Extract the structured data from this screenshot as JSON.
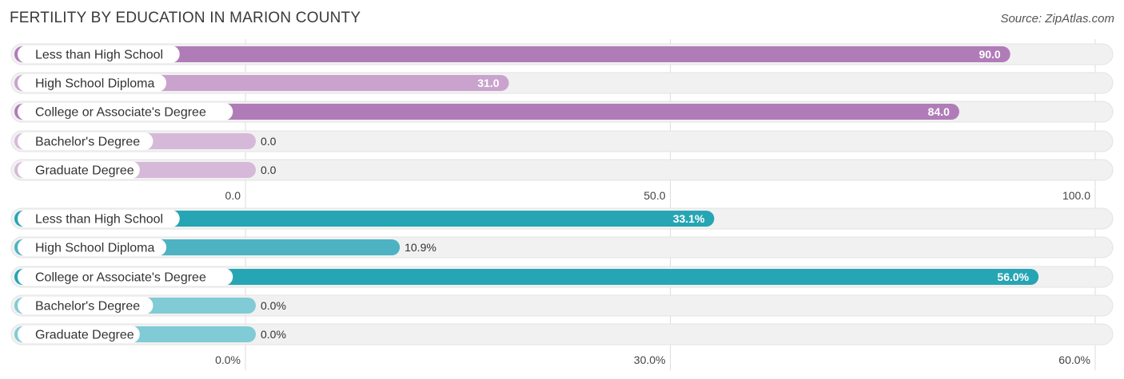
{
  "title": "FERTILITY BY EDUCATION IN MARION COUNTY",
  "source": "Source: ZipAtlas.com",
  "chart_data": [
    {
      "type": "bar",
      "orientation": "horizontal",
      "categories": [
        "Less than High School",
        "High School Diploma",
        "College or Associate's Degree",
        "Bachelor's Degree",
        "Graduate Degree"
      ],
      "values": [
        90.0,
        31.0,
        84.0,
        0.0,
        0.0
      ],
      "value_labels": [
        "90.0",
        "31.0",
        "84.0",
        "0.0",
        "0.0"
      ],
      "xlim": [
        0,
        100
      ],
      "ticks": [
        0,
        50,
        100
      ],
      "tick_labels": [
        "0.0",
        "50.0",
        "100.0"
      ],
      "colors": {
        "strong": "#b07cb8",
        "light": "#c9a3cd",
        "faint": "#d6b9d9"
      },
      "grid": true
    },
    {
      "type": "bar",
      "orientation": "horizontal",
      "categories": [
        "Less than High School",
        "High School Diploma",
        "College or Associate's Degree",
        "Bachelor's Degree",
        "Graduate Degree"
      ],
      "values": [
        33.1,
        10.9,
        56.0,
        0.0,
        0.0
      ],
      "value_labels": [
        "33.1%",
        "10.9%",
        "56.0%",
        "0.0%",
        "0.0%"
      ],
      "xlim": [
        0,
        60
      ],
      "ticks": [
        0,
        30,
        60
      ],
      "tick_labels": [
        "0.0%",
        "30.0%",
        "60.0%"
      ],
      "colors": {
        "strong": "#26a5b4",
        "light": "#4db3c2",
        "faint": "#80cbd5"
      },
      "grid": true
    }
  ]
}
